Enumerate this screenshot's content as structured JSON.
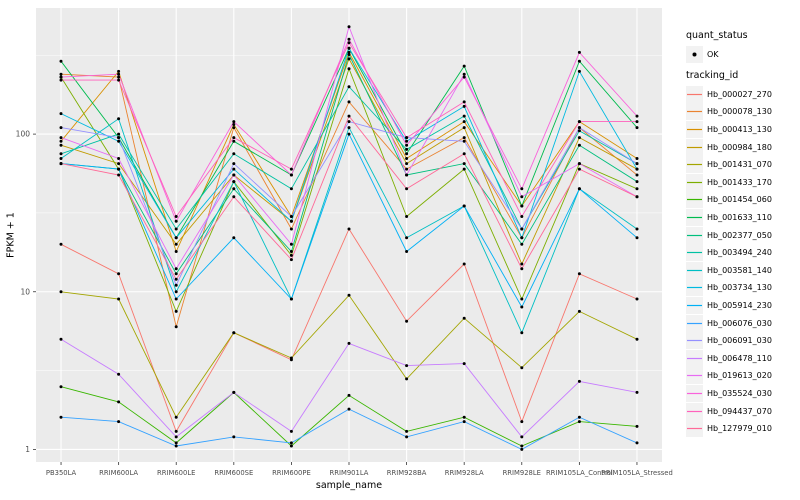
{
  "colors": {
    "panel_bg": "#EBEBEB",
    "grid": "#FFFFFF",
    "axis_text": "#4D4D4D",
    "tick_mark": "#333333",
    "legend_key_bg": "#F2F2F2",
    "point_color": "#000000"
  },
  "legend": {
    "quant_status_title": "quant_status",
    "ok_label": "OK",
    "tracking_id_title": "tracking_id"
  },
  "chart_data": {
    "type": "line",
    "title": "",
    "xlabel": "sample_name",
    "ylabel": "FPKM + 1",
    "yscale": "log10",
    "ylim": [
      1,
      500
    ],
    "y_major_ticks": [
      1,
      10,
      100
    ],
    "y_minor_ticks": [
      3.162,
      31.62,
      316.2
    ],
    "grid": true,
    "legend_position": "right",
    "categories": [
      "PB350LA",
      "RRIM600LA",
      "RRIM600LE",
      "RRIM600SE",
      "RRIM600PE",
      "RRIM901LA",
      "RRIM928BA",
      "RRIM928LA",
      "RRIM928LE",
      "RRIM105LA_Control",
      "RRIM105LA_Stressed"
    ],
    "series": [
      {
        "name": "Hb_000027_270",
        "color": "#F8766D",
        "values": [
          20,
          13,
          1.3,
          5.5,
          3.7,
          25,
          6.5,
          15,
          1.5,
          13,
          9
        ]
      },
      {
        "name": "Hb_000078_130",
        "color": "#EA8331",
        "values": [
          240,
          230,
          6,
          110,
          25,
          160,
          60,
          95,
          22,
          110,
          55
        ]
      },
      {
        "name": "Hb_000413_130",
        "color": "#D89000",
        "values": [
          90,
          250,
          18,
          115,
          30,
          330,
          70,
          120,
          35,
          120,
          70
        ]
      },
      {
        "name": "Hb_000984_180",
        "color": "#C09B00",
        "values": [
          85,
          65,
          20,
          55,
          28,
          300,
          65,
          110,
          15,
          95,
          60
        ]
      },
      {
        "name": "Hb_001431_070",
        "color": "#A3A500",
        "values": [
          10,
          9,
          1.6,
          5.5,
          3.8,
          9.5,
          2.8,
          6.8,
          3.3,
          7.5,
          5
        ]
      },
      {
        "name": "Hb_001433_170",
        "color": "#7CAE00",
        "values": [
          230,
          60,
          7.5,
          50,
          17,
          260,
          30,
          60,
          9,
          65,
          45
        ]
      },
      {
        "name": "Hb_001454_060",
        "color": "#39B600",
        "values": [
          2.5,
          2,
          1.1,
          2.3,
          1.05,
          2.2,
          1.3,
          1.6,
          1.05,
          1.5,
          1.4
        ]
      },
      {
        "name": "Hb_001633_110",
        "color": "#00BB4E",
        "values": [
          290,
          95,
          22,
          90,
          55,
          350,
          75,
          270,
          35,
          290,
          110
        ]
      },
      {
        "name": "Hb_002377_050",
        "color": "#00BF7D",
        "values": [
          65,
          60,
          13,
          45,
          18,
          320,
          55,
          65,
          20,
          85,
          50
        ]
      },
      {
        "name": "Hb_003494_240",
        "color": "#00C1A3",
        "values": [
          75,
          100,
          25,
          75,
          45,
          200,
          80,
          130,
          25,
          105,
          65
        ]
      },
      {
        "name": "Hb_003581_140",
        "color": "#00BFC4",
        "values": [
          70,
          125,
          10,
          50,
          9,
          110,
          22,
          35,
          5.5,
          45,
          25
        ]
      },
      {
        "name": "Hb_003734_130",
        "color": "#00BAE0",
        "values": [
          135,
          90,
          22,
          60,
          28,
          350,
          90,
          150,
          22,
          250,
          60
        ]
      },
      {
        "name": "Hb_005914_230",
        "color": "#00B0F6",
        "values": [
          65,
          60,
          9,
          22,
          9,
          100,
          18,
          35,
          8,
          45,
          22
        ]
      },
      {
        "name": "Hb_006076_030",
        "color": "#35A2FF",
        "values": [
          1.6,
          1.5,
          1.05,
          1.2,
          1.1,
          1.8,
          1.2,
          1.5,
          1.0,
          1.6,
          1.1
        ]
      },
      {
        "name": "Hb_006091_030",
        "color": "#9590FF",
        "values": [
          110,
          95,
          11,
          65,
          30,
          120,
          95,
          90,
          25,
          110,
          65
        ]
      },
      {
        "name": "Hb_006478_110",
        "color": "#C77CFF",
        "values": [
          5,
          3,
          1.2,
          2.3,
          1.3,
          4.7,
          3.4,
          3.5,
          1.2,
          2.7,
          2.3
        ]
      },
      {
        "name": "Hb_019613_020",
        "color": "#E76BF3",
        "values": [
          95,
          70,
          14,
          55,
          20,
          480,
          55,
          240,
          40,
          65,
          40
        ]
      },
      {
        "name": "Hb_035524_030",
        "color": "#FA62DB",
        "values": [
          230,
          240,
          28,
          120,
          55,
          400,
          85,
          230,
          45,
          330,
          130
        ]
      },
      {
        "name": "Hb_094437_070",
        "color": "#FF62BC",
        "values": [
          220,
          220,
          30,
          95,
          60,
          380,
          95,
          160,
          30,
          120,
          120
        ]
      },
      {
        "name": "Hb_127979_010",
        "color": "#FF6A98",
        "values": [
          65,
          55,
          12,
          40,
          16,
          130,
          45,
          75,
          14,
          60,
          40
        ]
      }
    ]
  }
}
